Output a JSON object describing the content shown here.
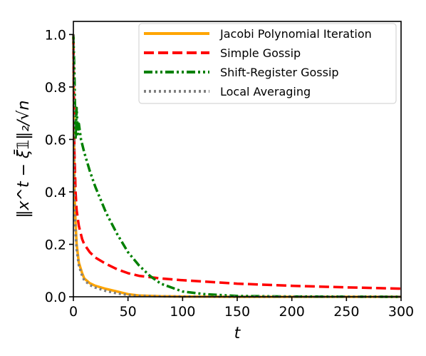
{
  "chart_data": {
    "type": "line",
    "xlabel": "t",
    "ylabel": "‖x^t − ξ̄𝟙‖₂/√n",
    "xlim": [
      0,
      300
    ],
    "ylim": [
      0,
      1.05
    ],
    "xticks": [
      0,
      50,
      100,
      150,
      200,
      250,
      300
    ],
    "yticks": [
      0.0,
      0.2,
      0.4,
      0.6,
      0.8,
      1.0
    ],
    "xtick_labels": [
      "0",
      "50",
      "100",
      "150",
      "200",
      "250",
      "300"
    ],
    "ytick_labels": [
      "0.0",
      "0.2",
      "0.4",
      "0.6",
      "0.8",
      "1.0"
    ],
    "grid": false,
    "legend_position": "top-right",
    "series": [
      {
        "name": "Jacobi Polynomial Iteration",
        "color": "#ffa500",
        "style": "solid",
        "x": [
          0,
          1,
          2,
          3,
          5,
          8,
          10,
          15,
          20,
          30,
          40,
          50,
          60,
          80,
          100,
          150,
          200,
          300
        ],
        "y": [
          1.0,
          0.4,
          0.28,
          0.2,
          0.13,
          0.09,
          0.07,
          0.052,
          0.042,
          0.03,
          0.02,
          0.01,
          0.005,
          0.002,
          0.001,
          0.0,
          0.0,
          0.0
        ]
      },
      {
        "name": "Simple Gossip",
        "color": "#ff0000",
        "style": "dashed",
        "x": [
          0,
          1,
          2,
          3,
          5,
          8,
          10,
          15,
          20,
          30,
          40,
          50,
          60,
          80,
          100,
          150,
          200,
          250,
          300
        ],
        "y": [
          1.0,
          0.55,
          0.4,
          0.33,
          0.27,
          0.22,
          0.2,
          0.17,
          0.15,
          0.125,
          0.105,
          0.09,
          0.08,
          0.07,
          0.063,
          0.05,
          0.042,
          0.036,
          0.031
        ]
      },
      {
        "name": "Shift-Register Gossip",
        "color": "#008000",
        "style": "dashdot",
        "x": [
          0,
          1,
          2,
          3,
          4,
          5,
          7,
          10,
          15,
          20,
          30,
          40,
          50,
          60,
          70,
          80,
          100,
          120,
          150,
          200,
          300
        ],
        "y": [
          1.0,
          0.85,
          0.6,
          0.72,
          0.62,
          0.66,
          0.6,
          0.55,
          0.48,
          0.42,
          0.32,
          0.24,
          0.17,
          0.12,
          0.08,
          0.05,
          0.02,
          0.01,
          0.003,
          0.001,
          0.0
        ]
      },
      {
        "name": "Local Averaging",
        "color": "#808080",
        "style": "dotted",
        "x": [
          0,
          1,
          2,
          3,
          5,
          8,
          10,
          15,
          20,
          30,
          40,
          50,
          60,
          80,
          100,
          150,
          200,
          300
        ],
        "y": [
          1.0,
          0.35,
          0.24,
          0.18,
          0.12,
          0.08,
          0.063,
          0.045,
          0.035,
          0.022,
          0.013,
          0.007,
          0.004,
          0.002,
          0.001,
          0.0,
          0.0,
          0.0
        ]
      }
    ]
  }
}
